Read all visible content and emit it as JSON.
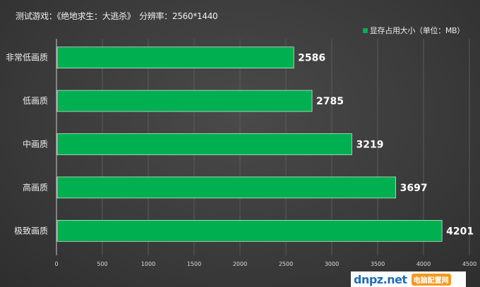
{
  "chart_data": {
    "type": "bar",
    "orientation": "horizontal",
    "title": "测试游戏：《绝地求生：大逃杀》　分辨率：2560*1440",
    "categories": [
      "非常低画质",
      "低画质",
      "中画质",
      "高画质",
      "极致画质"
    ],
    "series": [
      {
        "name": "显存占用大小（单位：MB）",
        "values": [
          2586,
          2785,
          3219,
          3697,
          4201
        ],
        "color": "#00b050"
      }
    ],
    "xlim": [
      0,
      4500
    ],
    "xticks": [
      0,
      500,
      1000,
      1500,
      2000,
      2500,
      3000,
      3500,
      4000,
      4500
    ],
    "grid": true,
    "legend_position": "top-right"
  },
  "watermark": {
    "text": "dnpz.net",
    "tag": "电脑配置网"
  }
}
